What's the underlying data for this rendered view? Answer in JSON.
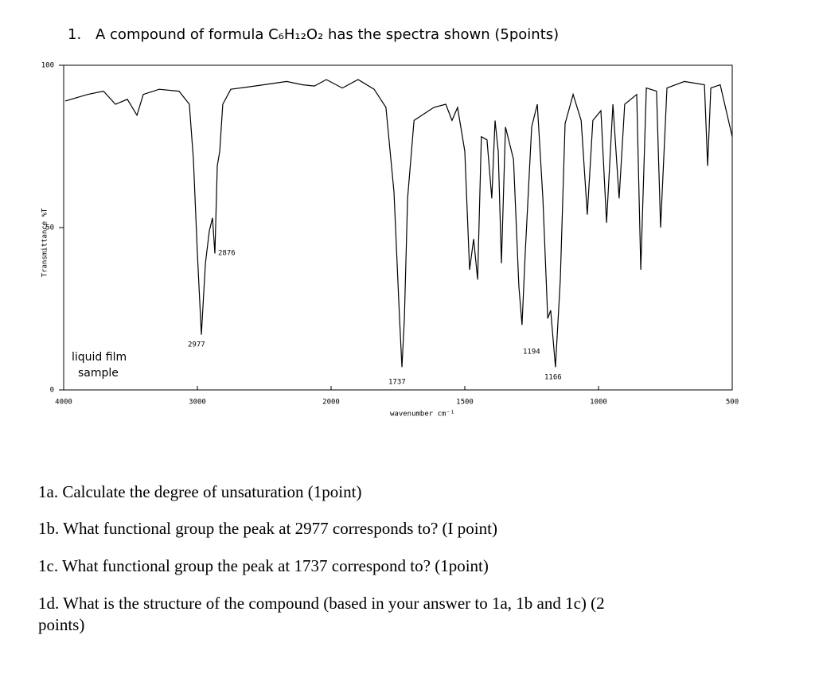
{
  "number": "1.",
  "title": "A compound of formula C₆H₁₂O₂  has the spectra shown (5points)",
  "chart_data": {
    "type": "line",
    "xlabel": "wavenumber cm⁻¹",
    "ylabel": "Transmittance %T",
    "annotations": [
      "2876",
      "2977",
      "1737",
      "1194",
      "1166",
      "liquid film",
      "sample"
    ],
    "color": "#000000",
    "xlim": [
      4000,
      500
    ],
    "xticks": [
      4000,
      3000,
      2000,
      1500,
      1000,
      500
    ],
    "ylim": [
      0,
      100
    ],
    "yticks": [
      0,
      50,
      100
    ],
    "x": [
      3988,
      3821,
      3702,
      3613,
      3524,
      3452,
      3405,
      3286,
      3137,
      3060,
      3030,
      3000,
      2970,
      2940,
      2911,
      2887,
      2869,
      2851,
      2833,
      2810,
      2750,
      2571,
      2333,
      2214,
      2125,
      2036,
      1958,
      1899,
      1839,
      1795,
      1765,
      1744,
      1735,
      1726,
      1714,
      1690,
      1616,
      1571,
      1548,
      1527,
      1500,
      1482,
      1467,
      1452,
      1438,
      1417,
      1399,
      1387,
      1375,
      1363,
      1348,
      1318,
      1298,
      1286,
      1274,
      1250,
      1229,
      1208,
      1190,
      1179,
      1161,
      1143,
      1125,
      1095,
      1065,
      1042,
      1021,
      991,
      970,
      946,
      923,
      902,
      857,
      842,
      821,
      783,
      768,
      744,
      679,
      604,
      592,
      580,
      545,
      500
    ],
    "values": [
      89,
      91,
      92,
      88,
      89.5,
      84.6,
      91,
      92.6,
      92,
      88,
      71,
      42,
      17,
      39,
      49,
      53,
      42,
      69,
      73.5,
      88,
      92.6,
      93.6,
      95,
      94,
      93.6,
      95.6,
      93,
      95.6,
      92.6,
      87,
      61,
      22,
      7,
      22,
      59,
      83,
      87,
      88,
      83,
      87,
      73.5,
      37,
      46.5,
      34,
      78,
      77,
      59,
      83,
      73.5,
      39,
      81,
      71,
      32,
      20,
      42,
      81,
      88,
      59,
      22,
      24.5,
      7,
      34,
      82,
      91,
      83,
      54,
      83,
      86,
      51.5,
      88,
      59,
      88,
      91,
      37,
      93,
      92,
      50,
      93,
      95,
      94,
      69,
      93,
      94,
      78
    ]
  },
  "questions": [
    "1a. Calculate the degree of unsaturation (1point)",
    "1b. What functional group the peak at 2977 corresponds to? (I point)",
    "1c. What functional group the peak at 1737 correspond to? (1point)",
    "1d. What is the structure of the compound (based in your answer to 1a, 1b and 1c) (2",
    "points)"
  ]
}
